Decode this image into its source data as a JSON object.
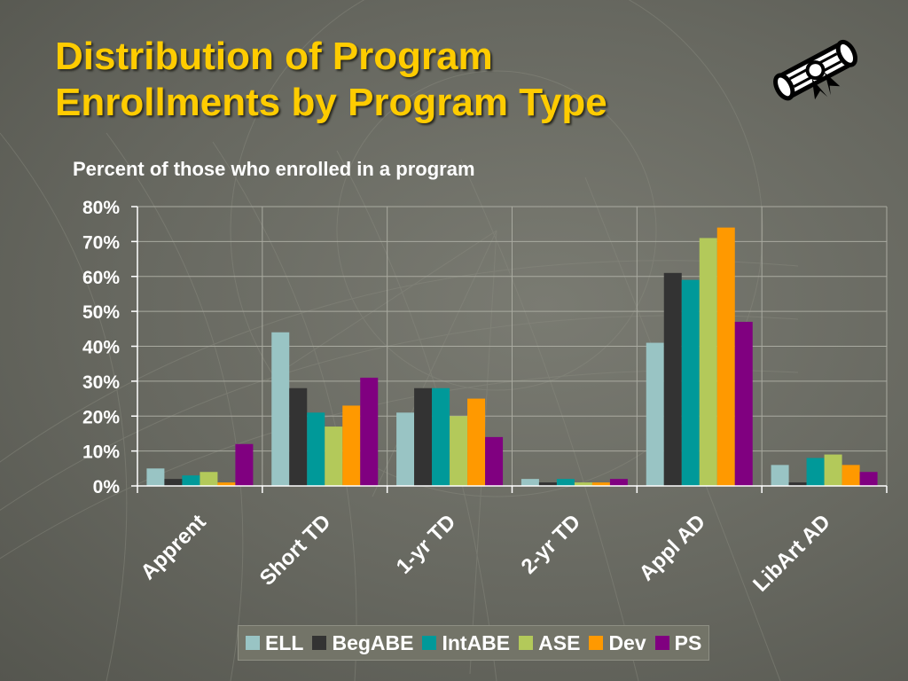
{
  "slide": {
    "title_line1": "Distribution of Program",
    "title_line2": "Enrollments by Program Type",
    "subtitle": "Percent of those who enrolled in a program",
    "title_color": "#ffcc00",
    "icon": "diploma-icon"
  },
  "chart_data": {
    "type": "bar",
    "title": "",
    "xlabel": "",
    "ylabel": "",
    "categories": [
      "Apprent",
      "Short TD",
      "1-yr TD",
      "2-yr TD",
      "Appl AD",
      "LibArt AD"
    ],
    "ylim": [
      0,
      80
    ],
    "yticks": [
      "0%",
      "10%",
      "20%",
      "30%",
      "40%",
      "50%",
      "60%",
      "70%",
      "80%"
    ],
    "y_unit": "%",
    "grid": true,
    "legend_position": "bottom",
    "series": [
      {
        "name": "ELL",
        "color": "#99c4c4",
        "values": [
          5,
          44,
          21,
          2,
          41,
          6
        ]
      },
      {
        "name": "BegABE",
        "color": "#333333",
        "values": [
          2,
          28,
          28,
          1,
          61,
          1
        ]
      },
      {
        "name": "IntABE",
        "color": "#009999",
        "values": [
          3,
          21,
          28,
          2,
          59,
          8
        ]
      },
      {
        "name": "ASE",
        "color": "#b3c95a",
        "values": [
          4,
          17,
          20,
          1,
          71,
          9
        ]
      },
      {
        "name": "Dev",
        "color": "#ff9900",
        "values": [
          1,
          23,
          25,
          1,
          74,
          6
        ]
      },
      {
        "name": "PS",
        "color": "#800080",
        "values": [
          12,
          31,
          14,
          2,
          47,
          4
        ]
      }
    ]
  }
}
